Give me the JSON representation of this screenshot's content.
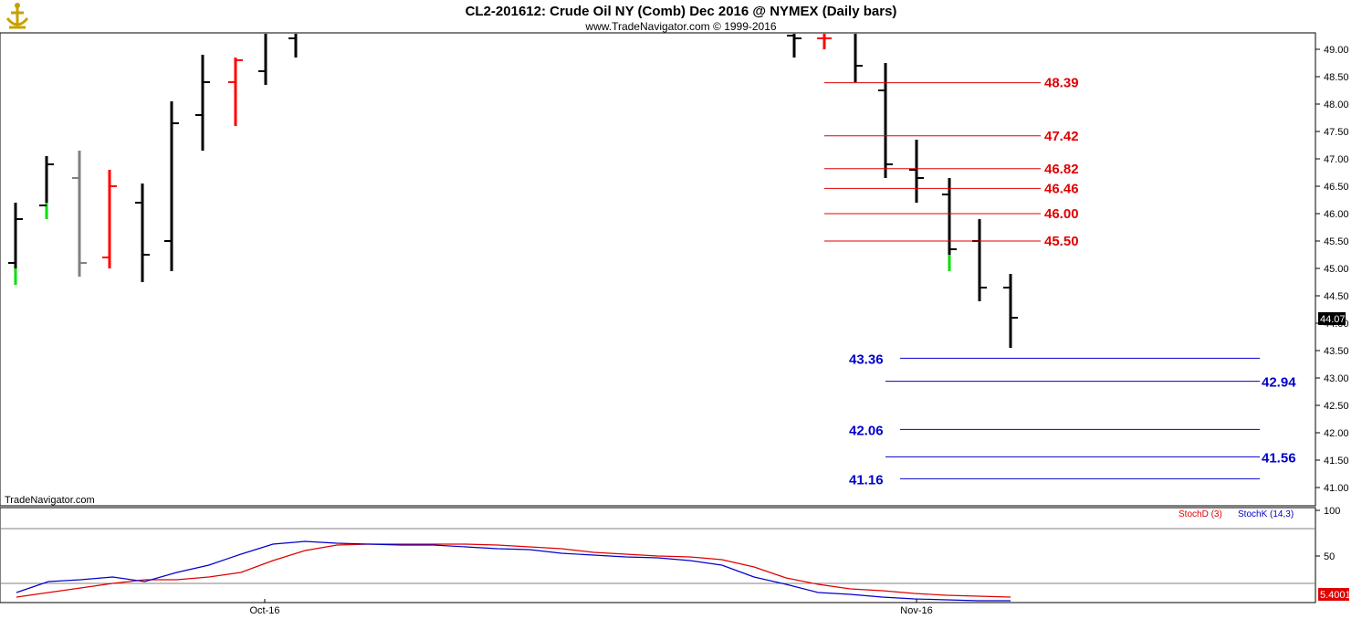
{
  "header": {
    "title": "CL2-201612:  Crude Oil NY (Comb) Dec 2016 @ NYMEX  (Daily bars)",
    "subtitle": "www.TradeNavigator.com © 1999-2016"
  },
  "watermark": "TradeNavigator.com",
  "colors": {
    "up": "#000000",
    "down": "#ff0000",
    "gray": "#808080",
    "green": "#00e000",
    "resistance": "#e00000",
    "support": "#0000cc",
    "stochD": "#e00000",
    "stochK": "#0000cc"
  },
  "chart_data": [
    {
      "type": "ohlc",
      "title": "CL2-201612:  Crude Oil NY (Comb) Dec 2016 @ NYMEX  (Daily bars)",
      "ylim": [
        40.75,
        49.25
      ],
      "yticks": [
        "49.00",
        "48.50",
        "48.00",
        "47.50",
        "47.00",
        "46.50",
        "46.00",
        "45.50",
        "45.00",
        "44.50",
        "44.00",
        "43.50",
        "43.00",
        "42.50",
        "42.00",
        "41.50",
        "41.00"
      ],
      "last_price": "44.07",
      "xticks": [
        "Oct-16",
        "Nov-16"
      ],
      "bars": [
        {
          "o": 45.1,
          "h": 46.2,
          "l": 44.7,
          "c": 45.9,
          "color": "black",
          "tail": "green"
        },
        {
          "o": 46.15,
          "h": 47.05,
          "l": 45.9,
          "c": 46.9,
          "color": "black",
          "tail": "green"
        },
        {
          "o": 46.65,
          "h": 47.15,
          "l": 44.85,
          "c": 45.1,
          "color": "gray"
        },
        {
          "o": 45.2,
          "h": 46.8,
          "l": 45.0,
          "c": 46.5,
          "color": "red"
        },
        {
          "o": 46.2,
          "h": 46.55,
          "l": 44.75,
          "c": 45.25,
          "color": "black"
        },
        {
          "o": 45.5,
          "h": 48.05,
          "l": 44.95,
          "c": 47.65,
          "color": "black"
        },
        {
          "o": 47.8,
          "h": 48.9,
          "l": 47.15,
          "c": 48.4,
          "color": "black"
        },
        {
          "o": 48.4,
          "h": 48.85,
          "l": 47.6,
          "c": 48.8,
          "color": "red"
        },
        {
          "o": 48.6,
          "h": 49.3,
          "l": 48.35,
          "c": 49.3,
          "color": "black"
        },
        {
          "o": 49.2,
          "h": 49.3,
          "l": 48.85,
          "c": 49.3,
          "color": "black"
        },
        {
          "o": 49.25,
          "h": 49.3,
          "l": 48.85,
          "c": 49.2,
          "color": "black"
        },
        {
          "o": 49.2,
          "h": 49.3,
          "l": 49.0,
          "c": 49.2,
          "color": "red"
        },
        {
          "o": 49.3,
          "h": 49.3,
          "l": 48.4,
          "c": 48.7,
          "color": "black"
        },
        {
          "o": 48.25,
          "h": 48.75,
          "l": 46.65,
          "c": 46.9,
          "color": "black"
        },
        {
          "o": 46.8,
          "h": 47.35,
          "l": 46.2,
          "c": 46.65,
          "color": "black"
        },
        {
          "o": 46.35,
          "h": 46.65,
          "l": 44.95,
          "c": 45.35,
          "color": "black",
          "tail": "green"
        },
        {
          "o": 45.5,
          "h": 45.9,
          "l": 44.4,
          "c": 44.65,
          "color": "black"
        },
        {
          "o": 44.65,
          "h": 44.9,
          "l": 43.55,
          "c": 44.1,
          "color": "black"
        }
      ],
      "resistance_levels": [
        "48.39",
        "47.42",
        "46.82",
        "46.46",
        "46.00",
        "45.50"
      ],
      "support_levels": [
        "43.36",
        "42.94",
        "42.06",
        "41.56",
        "41.16"
      ]
    },
    {
      "type": "line",
      "title": "",
      "ylim": [
        0,
        100
      ],
      "yticks": [
        "100",
        "50"
      ],
      "last_value": "5.4001",
      "series": [
        {
          "name": "StochD (3)",
          "values": [
            5,
            10,
            15,
            20,
            24,
            24,
            27,
            32,
            45,
            56,
            62,
            63,
            63,
            63,
            63,
            62,
            60,
            58,
            54,
            52,
            50,
            49,
            46,
            38,
            26,
            19,
            14,
            12,
            9,
            7,
            6,
            5
          ]
        },
        {
          "name": "StochK (14,3)",
          "values": [
            10,
            22,
            24,
            27,
            22,
            32,
            40,
            52,
            63,
            66,
            64,
            63,
            62,
            62,
            60,
            58,
            57,
            53,
            51,
            49,
            48,
            45,
            40,
            27,
            19,
            10,
            8,
            5,
            3,
            2,
            1,
            1
          ]
        }
      ]
    }
  ]
}
